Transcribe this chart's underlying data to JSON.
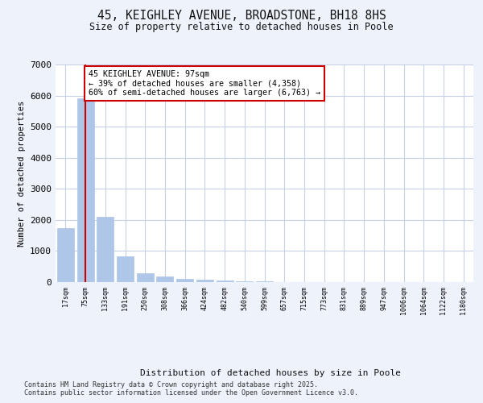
{
  "title": "45, KEIGHLEY AVENUE, BROADSTONE, BH18 8HS",
  "subtitle": "Size of property relative to detached houses in Poole",
  "xlabel": "Distribution of detached houses by size in Poole",
  "ylabel": "Number of detached properties",
  "categories": [
    "17sqm",
    "75sqm",
    "133sqm",
    "191sqm",
    "250sqm",
    "308sqm",
    "366sqm",
    "424sqm",
    "482sqm",
    "540sqm",
    "599sqm",
    "657sqm",
    "715sqm",
    "773sqm",
    "831sqm",
    "889sqm",
    "947sqm",
    "1006sqm",
    "1064sqm",
    "1122sqm",
    "1180sqm"
  ],
  "values": [
    1750,
    5900,
    2100,
    820,
    290,
    180,
    110,
    70,
    45,
    25,
    15,
    10,
    8,
    5,
    3,
    2,
    2,
    1,
    1,
    1,
    0
  ],
  "bar_color": "#aec6e8",
  "marker_index": 1,
  "marker_color": "#cc0000",
  "annotation_text": "45 KEIGHLEY AVENUE: 97sqm\n← 39% of detached houses are smaller (4,358)\n60% of semi-detached houses are larger (6,763) →",
  "annotation_box_color": "#ffffff",
  "annotation_box_edge": "#cc0000",
  "ylim": [
    0,
    7000
  ],
  "yticks": [
    0,
    1000,
    2000,
    3000,
    4000,
    5000,
    6000,
    7000
  ],
  "footnote1": "Contains HM Land Registry data © Crown copyright and database right 2025.",
  "footnote2": "Contains public sector information licensed under the Open Government Licence v3.0.",
  "bg_color": "#eef2fb",
  "plot_bg_color": "#ffffff",
  "grid_color": "#c8d0e8"
}
